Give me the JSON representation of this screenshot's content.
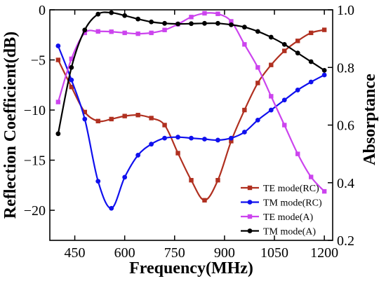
{
  "chart_data": {
    "type": "line",
    "xlabel": "Frequency(MHz)",
    "ylabel_left": "Reflection Coefficient(dB)",
    "ylabel_right": "Absorptance",
    "xlim": [
      375,
      1225
    ],
    "ylim_left": [
      -23,
      0
    ],
    "ylim_right": [
      0.2,
      1.0
    ],
    "x_ticks": [
      450,
      600,
      750,
      900,
      1050,
      1200
    ],
    "y_ticks_left": [
      0,
      -5,
      -10,
      -15,
      -20
    ],
    "y_ticks_right": [
      1.0,
      0.8,
      0.6,
      0.4,
      0.2
    ],
    "y_tick_labels_left": [
      "0",
      "−5",
      "−10",
      "−15",
      "−20"
    ],
    "y_tick_labels_right": [
      "1.0",
      "0.8",
      "0.6",
      "0.4",
      "0.2"
    ],
    "grid": false,
    "legend_position": "bottom-right",
    "x": [
      400,
      440,
      480,
      520,
      560,
      600,
      640,
      680,
      720,
      760,
      800,
      840,
      880,
      920,
      960,
      1000,
      1040,
      1080,
      1120,
      1160,
      1200
    ],
    "series": [
      {
        "name": "TE mode(RC)",
        "axis": "left",
        "color": "#b03020",
        "marker": "square",
        "values": [
          -5.0,
          -7.7,
          -10.2,
          -11.1,
          -10.9,
          -10.6,
          -10.5,
          -10.8,
          -11.5,
          -14.3,
          -17.0,
          -19.0,
          -17.0,
          -13.1,
          -10.0,
          -7.3,
          -5.5,
          -4.1,
          -3.1,
          -2.3,
          -2.0
        ]
      },
      {
        "name": "TM mode(RC)",
        "axis": "left",
        "color": "#1010ee",
        "marker": "circle",
        "values": [
          -3.6,
          -7.0,
          -10.9,
          -17.1,
          -19.8,
          -16.7,
          -14.5,
          -13.4,
          -12.8,
          -12.7,
          -12.8,
          -12.9,
          -13.0,
          -12.8,
          -12.2,
          -11.0,
          -10.0,
          -9.0,
          -8.0,
          -7.2,
          -6.5
        ]
      },
      {
        "name": "TE mode(A)",
        "axis": "right",
        "color": "#cc44ee",
        "marker": "square",
        "values": [
          0.68,
          0.83,
          0.92,
          0.925,
          0.924,
          0.92,
          0.917,
          0.92,
          0.93,
          0.95,
          0.975,
          0.988,
          0.986,
          0.96,
          0.88,
          0.8,
          0.7,
          0.6,
          0.5,
          0.42,
          0.37
        ]
      },
      {
        "name": "TM mode(A)",
        "axis": "right",
        "color": "#000000",
        "marker": "circle",
        "values": [
          0.57,
          0.8,
          0.93,
          0.985,
          0.99,
          0.98,
          0.968,
          0.958,
          0.953,
          0.951,
          0.952,
          0.953,
          0.953,
          0.948,
          0.94,
          0.925,
          0.905,
          0.88,
          0.85,
          0.82,
          0.79
        ]
      }
    ]
  }
}
